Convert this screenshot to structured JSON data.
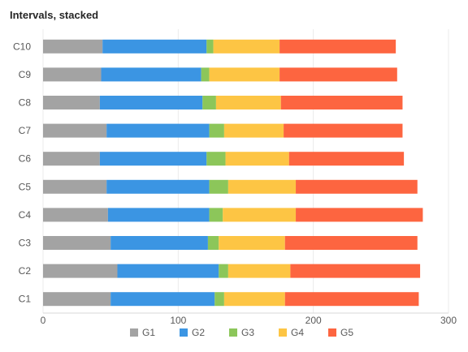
{
  "chart_data": {
    "type": "bar",
    "orientation": "horizontal",
    "stacked": true,
    "title": "Intervals, stacked",
    "categories": [
      "C1",
      "C2",
      "C3",
      "C4",
      "C5",
      "C6",
      "C7",
      "C8",
      "C9",
      "C10"
    ],
    "series": [
      {
        "name": "G1",
        "color": "#a3a3a3",
        "values": [
          50,
          55,
          50,
          48,
          47,
          42,
          47,
          42,
          43,
          44
        ]
      },
      {
        "name": "G2",
        "color": "#3b95e3",
        "values": [
          77,
          75,
          72,
          75,
          76,
          79,
          76,
          76,
          74,
          77
        ]
      },
      {
        "name": "G3",
        "color": "#8cc65a",
        "values": [
          7,
          7,
          8,
          10,
          14,
          14,
          11,
          10,
          6,
          5
        ]
      },
      {
        "name": "G4",
        "color": "#fdc544",
        "values": [
          45,
          46,
          49,
          54,
          50,
          47,
          44,
          48,
          52,
          49
        ]
      },
      {
        "name": "G5",
        "color": "#fd6540",
        "values": [
          99,
          96,
          98,
          94,
          90,
          85,
          88,
          90,
          87,
          86
        ]
      }
    ],
    "xlim": [
      0,
      300
    ],
    "xticks": [
      0,
      100,
      200,
      300
    ],
    "grid": true,
    "legend_position": "bottom"
  }
}
